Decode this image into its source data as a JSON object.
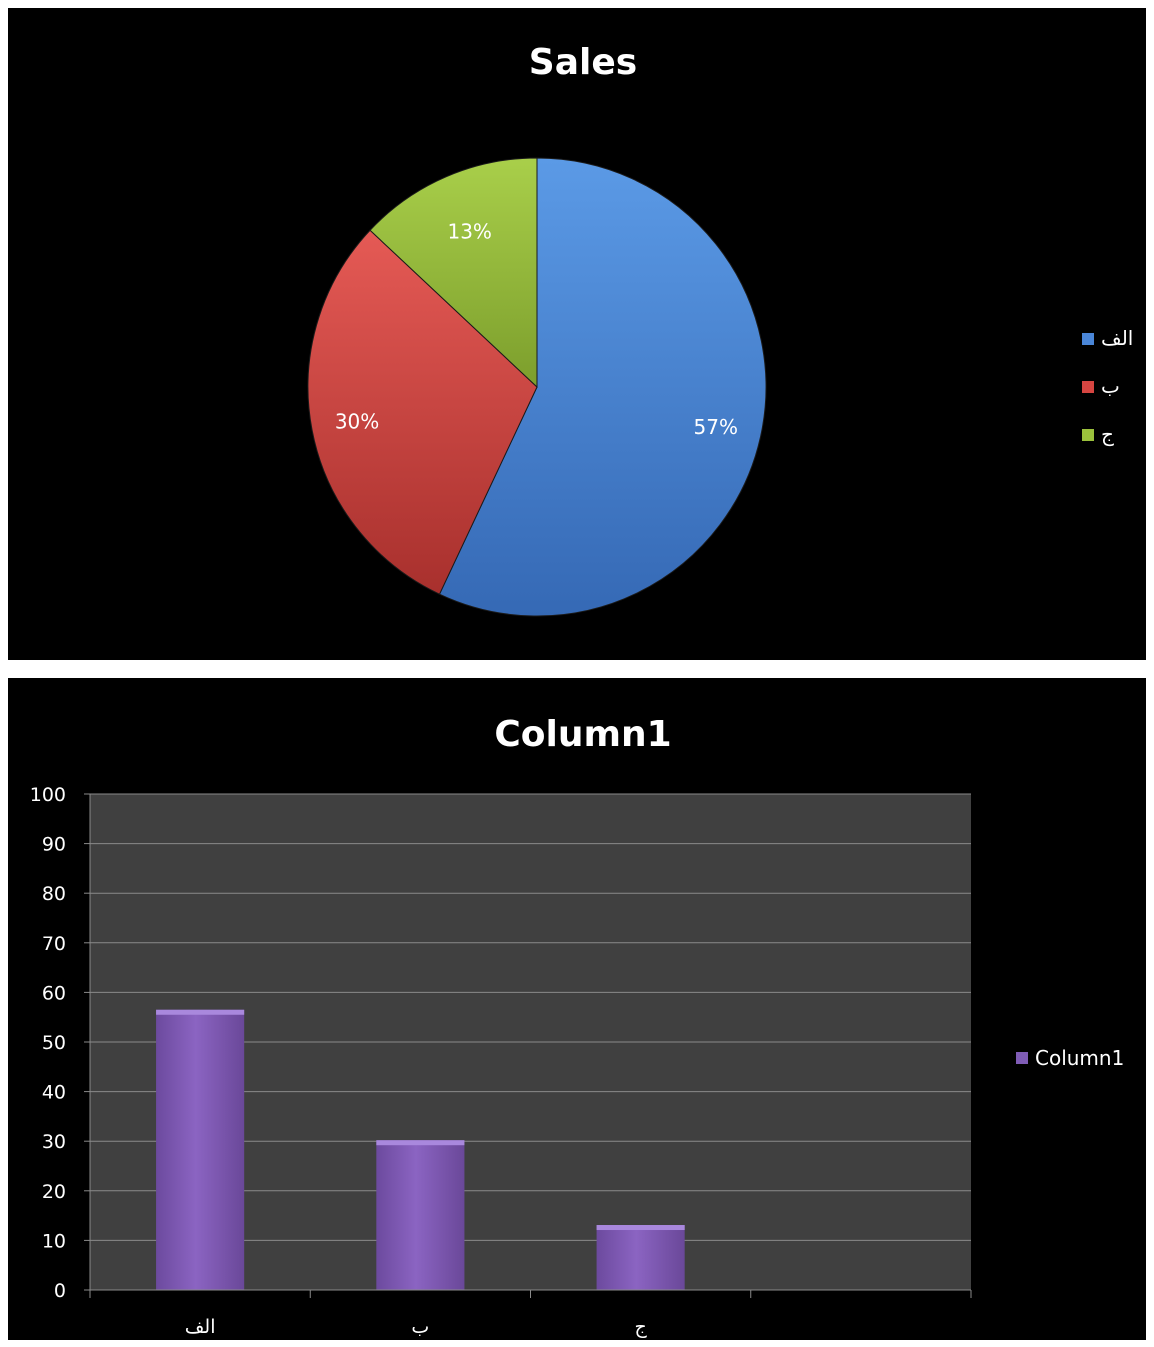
{
  "chart_data": [
    {
      "type": "pie",
      "title": "Sales",
      "categories": [
        "الف",
        "ب",
        "ج"
      ],
      "values": [
        57,
        30,
        13
      ],
      "labels": [
        "57%",
        "30%",
        "13%"
      ],
      "colors": [
        "#4a86d8",
        "#d64541",
        "#9bc13c"
      ],
      "legend_position": "right"
    },
    {
      "type": "bar",
      "title": "Column1",
      "categories": [
        "الف",
        "ب",
        "ج",
        ""
      ],
      "series": [
        {
          "name": "Column1",
          "values": [
            56.5,
            30.2,
            13.1,
            null
          ]
        }
      ],
      "ylim": [
        0,
        100
      ],
      "yticks": [
        "0",
        "10",
        "20",
        "30",
        "40",
        "50",
        "60",
        "70",
        "80",
        "90",
        "100"
      ],
      "grid": true,
      "colors": [
        "#7f5cb5"
      ],
      "legend_position": "right"
    }
  ]
}
